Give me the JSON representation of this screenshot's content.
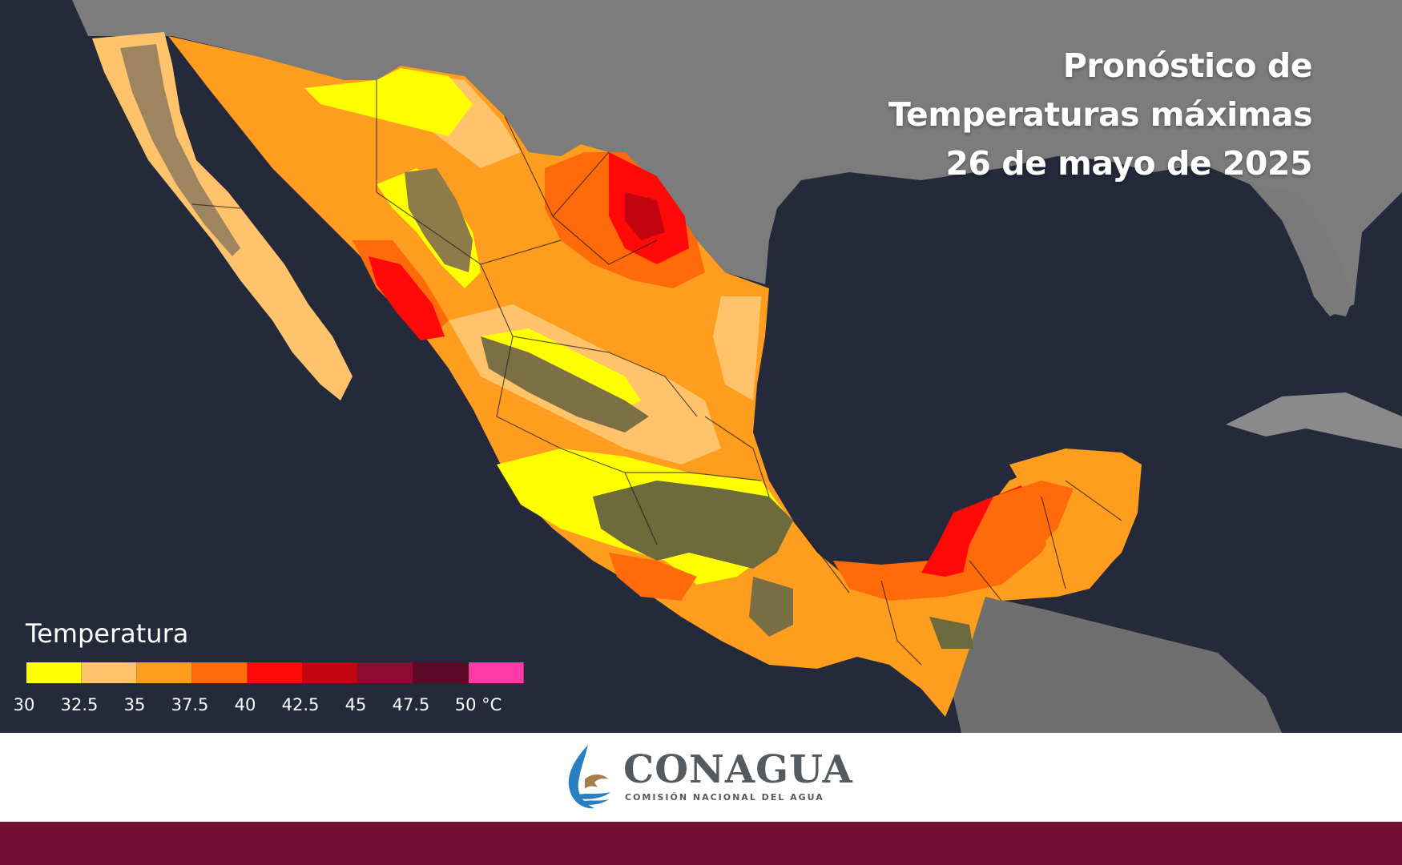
{
  "title": {
    "line1": "Pronóstico de",
    "line2": "Temperaturas máximas",
    "line3": "26 de mayo de 2025"
  },
  "legend": {
    "title": "Temperatura",
    "colors": [
      "#ffff00",
      "#ffc36b",
      "#ff9d1e",
      "#ff6a0a",
      "#ff0808",
      "#c20410",
      "#900a36",
      "#5c0a28",
      "#ff3aa6"
    ],
    "ticks": [
      "30",
      "32.5",
      "35",
      "37.5",
      "40",
      "42.5",
      "45",
      "47.5",
      "50 °C"
    ]
  },
  "logo": {
    "name": "CONAGUA",
    "subtitle": "COMISIÓN NACIONAL DEL AGUA"
  }
}
